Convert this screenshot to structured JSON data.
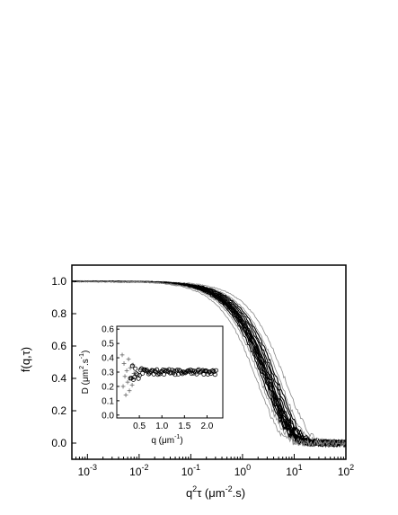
{
  "chart_data": [
    {
      "type": "line",
      "xscale": "log",
      "xlim": [
        0.0005,
        100
      ],
      "ylim": [
        -0.1,
        1.1
      ],
      "x_ticks": [
        {
          "base": "10",
          "exp": "-3",
          "value": 0.001
        },
        {
          "base": "10",
          "exp": "-2",
          "value": 0.01
        },
        {
          "base": "10",
          "exp": "-1",
          "value": 0.1
        },
        {
          "base": "10",
          "exp": "0",
          "value": 1
        },
        {
          "base": "10",
          "exp": "1",
          "value": 10
        },
        {
          "base": "10",
          "exp": "2",
          "value": 100
        }
      ],
      "y_ticks": [
        {
          "label": "0.0",
          "value": 0.0
        },
        {
          "label": "0.2",
          "value": 0.2
        },
        {
          "label": "0.4",
          "value": 0.4
        },
        {
          "label": "0.6",
          "value": 0.6
        },
        {
          "label": "0.8",
          "value": 0.8
        },
        {
          "label": "1.0",
          "value": 1.0
        }
      ],
      "xlabel": {
        "a": "q",
        "sup": "2",
        "b": "τ (μm",
        "sup2": "-2",
        "c": ".s)"
      },
      "ylabel": "f(q,τ)",
      "curve_family": {
        "model": "exp(-D q^2 tau)",
        "D_values": [
          0.14,
          0.18,
          0.2,
          0.22,
          0.24,
          0.26,
          0.27,
          0.28,
          0.29,
          0.3,
          0.31,
          0.32,
          0.33,
          0.35,
          0.38,
          0.42,
          0.5
        ],
        "noise_floor_amplitude": 0.02
      },
      "grid": false
    },
    {
      "type": "scatter",
      "inset": true,
      "xlim": [
        0.0,
        2.35
      ],
      "ylim": [
        -0.02,
        0.62
      ],
      "x_ticks": [
        {
          "label": "0.5",
          "value": 0.5
        },
        {
          "label": "1.0",
          "value": 1.0
        },
        {
          "label": "1.5",
          "value": 1.5
        },
        {
          "label": "2.0",
          "value": 2.0
        }
      ],
      "y_ticks": [
        {
          "label": "0.0",
          "value": 0.0
        },
        {
          "label": "0.1",
          "value": 0.1
        },
        {
          "label": "0.2",
          "value": 0.2
        },
        {
          "label": "0.3",
          "value": 0.3
        },
        {
          "label": "0.4",
          "value": 0.4
        },
        {
          "label": "0.5",
          "value": 0.5
        },
        {
          "label": "0.6",
          "value": 0.6
        }
      ],
      "xlabel": {
        "a": "q (μm",
        "sup": "-1",
        "b": ")"
      },
      "ylabel": {
        "a": "D (μm",
        "sup": "2",
        "b": ".s",
        "sup2": "-1",
        "c": ")"
      },
      "series": [
        {
          "marker": "cross",
          "points": [
            [
              0.12,
              0.42
            ],
            [
              0.14,
              0.2
            ],
            [
              0.16,
              0.36
            ],
            [
              0.18,
              0.27
            ],
            [
              0.2,
              0.14
            ],
            [
              0.22,
              0.31
            ],
            [
              0.24,
              0.23
            ],
            [
              0.26,
              0.39
            ],
            [
              0.28,
              0.17
            ],
            [
              0.3,
              0.33
            ],
            [
              0.32,
              0.26
            ],
            [
              0.34,
              0.21
            ],
            [
              0.36,
              0.35
            ],
            [
              0.38,
              0.29
            ]
          ]
        },
        {
          "marker": "circle",
          "x_range": [
            0.3,
            2.2
          ],
          "mean": 0.3,
          "spread": 0.018
        }
      ]
    }
  ]
}
